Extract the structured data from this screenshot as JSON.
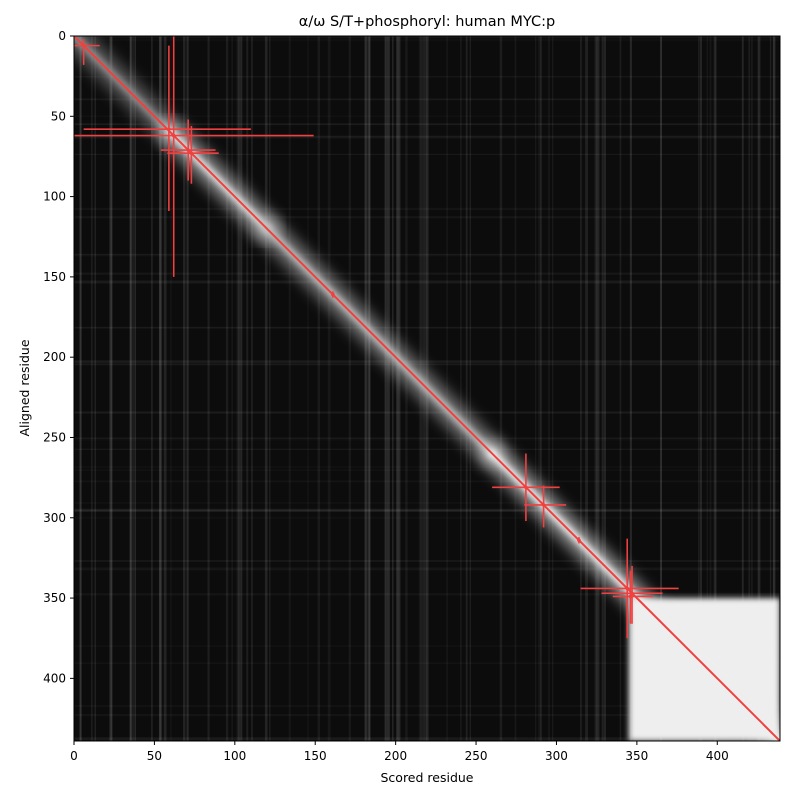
{
  "chart_data": {
    "type": "heatmap",
    "title": "α/ω S/T+phosphoryl: human MYC:p",
    "xlabel": "Scored residue",
    "ylabel": "Aligned residue",
    "xlim": [
      0,
      439
    ],
    "ylim": [
      439,
      0
    ],
    "xticks": [
      0,
      50,
      100,
      150,
      200,
      250,
      300,
      350,
      400
    ],
    "yticks": [
      0,
      50,
      100,
      150,
      200,
      250,
      300,
      350,
      400
    ],
    "colormap": "grayscale",
    "background_color": "#0c0c0c",
    "diagonal_color": "#f04040",
    "marker_color": "#f04040",
    "diagonal_line": {
      "from": [
        0,
        0
      ],
      "to": [
        439,
        439
      ]
    },
    "bright_regions": [
      {
        "x": [
          345,
          439
        ],
        "y": [
          350,
          439
        ],
        "level": 0.95
      }
    ],
    "diagonal_band_intensity": [
      {
        "from": 0,
        "to": 60,
        "level": 0.55
      },
      {
        "from": 60,
        "to": 120,
        "level": 0.9
      },
      {
        "from": 120,
        "to": 260,
        "level": 0.75
      },
      {
        "from": 260,
        "to": 439,
        "level": 0.95
      }
    ],
    "markers": [
      {
        "x": 6,
        "y": 6,
        "x_err": [
          0,
          16
        ],
        "y_err": [
          2,
          18
        ]
      },
      {
        "x": 59,
        "y": 58,
        "x_err": [
          6,
          110
        ],
        "y_err": [
          6,
          109
        ]
      },
      {
        "x": 62,
        "y": 62,
        "x_err": [
          0,
          149
        ],
        "y_err": [
          0,
          150
        ]
      },
      {
        "x": 71,
        "y": 71,
        "x_err": [
          54,
          88
        ],
        "y_err": [
          52,
          90
        ]
      },
      {
        "x": 73,
        "y": 73,
        "x_err": [
          58,
          90
        ],
        "y_err": [
          56,
          92
        ]
      },
      {
        "x": 161,
        "y": 161,
        "x_err": [
          160,
          162
        ],
        "y_err": [
          159,
          163
        ]
      },
      {
        "x": 281,
        "y": 281,
        "x_err": [
          260,
          302
        ],
        "y_err": [
          260,
          302
        ]
      },
      {
        "x": 292,
        "y": 292,
        "x_err": [
          280,
          306
        ],
        "y_err": [
          280,
          306
        ]
      },
      {
        "x": 314,
        "y": 314,
        "x_err": [
          313,
          315
        ],
        "y_err": [
          312,
          316
        ]
      },
      {
        "x": 344,
        "y": 344,
        "x_err": [
          315,
          376
        ],
        "y_err": [
          313,
          375
        ]
      },
      {
        "x": 347,
        "y": 347,
        "x_err": [
          328,
          366
        ],
        "y_err": [
          330,
          366
        ]
      },
      {
        "x": 346,
        "y": 349,
        "x_err": [
          335,
          360
        ],
        "y_err": [
          333,
          366
        ]
      }
    ]
  }
}
